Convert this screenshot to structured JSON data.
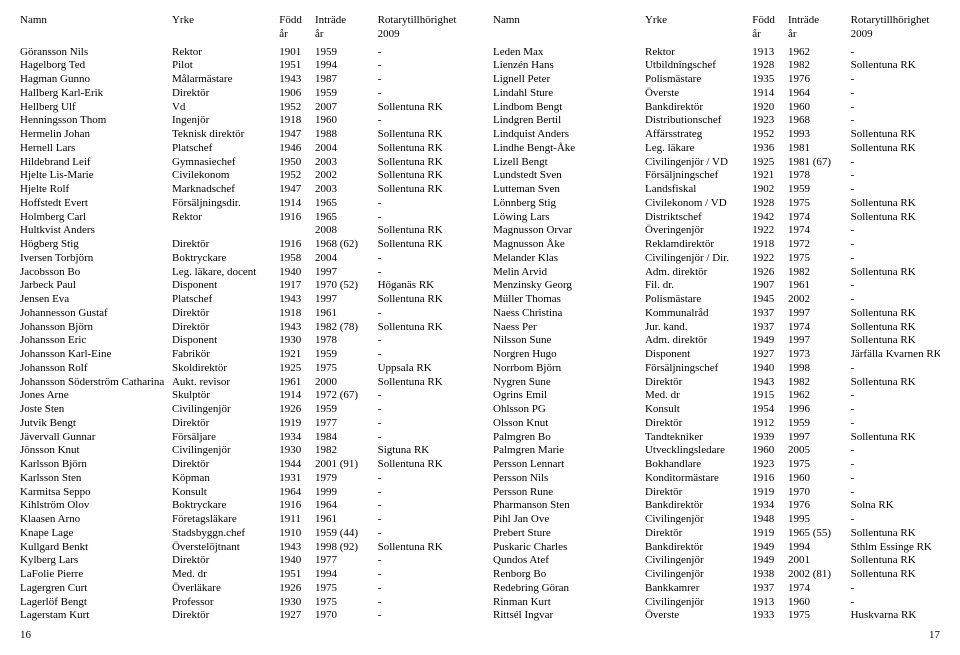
{
  "headers": {
    "name": "Namn",
    "prof": "Yrke",
    "bornTop": "Född",
    "bornBot": "år",
    "joinTop": "Inträde",
    "joinBot": "år",
    "rotTop": "Rotarytillhörighet",
    "rotBot": "2009"
  },
  "pageLeft": "16",
  "pageRight": "17",
  "left": [
    {
      "n": "Göransson Nils",
      "p": "Rektor",
      "b": "1901",
      "j": "1959",
      "r": "-"
    },
    {
      "n": "Hagelborg Ted",
      "p": "Pilot",
      "b": "1951",
      "j": "1994",
      "r": "-"
    },
    {
      "n": "Hagman Gunno",
      "p": "Målarmästare",
      "b": "1943",
      "j": "1987",
      "r": "-"
    },
    {
      "n": "Hallberg Karl-Erik",
      "p": "Direktör",
      "b": "1906",
      "j": "1959",
      "r": "-"
    },
    {
      "n": "Hellberg Ulf",
      "p": "Vd",
      "b": "1952",
      "j": "2007",
      "r": "Sollentuna RK"
    },
    {
      "n": "Henningsson Thom",
      "p": "Ingenjör",
      "b": "1918",
      "j": "1960",
      "r": "-"
    },
    {
      "n": "Hermelin Johan",
      "p": "Teknisk direktör",
      "b": "1947",
      "j": "1988",
      "r": "Sollentuna RK"
    },
    {
      "n": "Hernell Lars",
      "p": "Platschef",
      "b": "1946",
      "j": "2004",
      "r": "Sollentuna RK"
    },
    {
      "n": "Hildebrand Leif",
      "p": "Gymnasiechef",
      "b": "1950",
      "j": "2003",
      "r": "Sollentuna RK"
    },
    {
      "n": "Hjelte Lis-Marie",
      "p": "Civilekonom",
      "b": "1952",
      "j": "2002",
      "r": "Sollentuna RK"
    },
    {
      "n": "Hjelte Rolf",
      "p": "Marknadschef",
      "b": "1947",
      "j": "2003",
      "r": "Sollentuna RK"
    },
    {
      "n": "Hoffstedt Evert",
      "p": "Försäljningsdir.",
      "b": "1914",
      "j": "1965",
      "r": "-"
    },
    {
      "n": "Holmberg Carl",
      "p": "Rektor",
      "b": "1916",
      "j": "1965",
      "r": "-"
    },
    {
      "n": "Hultkvist Anders",
      "p": "",
      "b": "",
      "j": "2008",
      "r": "Sollentuna RK"
    },
    {
      "n": "Högberg Stig",
      "p": "Direktör",
      "b": "1916",
      "j": "1968 (62)",
      "r": "Sollentuna RK"
    },
    {
      "n": "Iversen Torbjörn",
      "p": "Boktryckare",
      "b": "1958",
      "j": "2004",
      "r": "-"
    },
    {
      "n": "Jacobsson Bo",
      "p": "Leg. läkare, docent",
      "b": "1940",
      "j": "1997",
      "r": "-"
    },
    {
      "n": "Jarbeck Paul",
      "p": "Disponent",
      "b": "1917",
      "j": "1970 (52)",
      "r": "Höganäs RK"
    },
    {
      "n": "Jensen Eva",
      "p": "Platschef",
      "b": "1943",
      "j": "1997",
      "r": "Sollentuna RK"
    },
    {
      "n": "Johannesson Gustaf",
      "p": "Direktör",
      "b": "1918",
      "j": "1961",
      "r": "-"
    },
    {
      "n": "Johansson Björn",
      "p": "Direktör",
      "b": "1943",
      "j": "1982 (78)",
      "r": "Sollentuna RK"
    },
    {
      "n": "Johansson Eric",
      "p": "Disponent",
      "b": "1930",
      "j": "1978",
      "r": "-"
    },
    {
      "n": "Johansson Karl-Eine",
      "p": "Fabrikör",
      "b": "1921",
      "j": "1959",
      "r": "-"
    },
    {
      "n": "Johansson Rolf",
      "p": "Skoldirektör",
      "b": "1925",
      "j": "1975",
      "r": "Uppsala RK"
    },
    {
      "n": "Johansson Söderström Catharina",
      "p": "Aukt. revisor",
      "b": "1961",
      "j": "2000",
      "r": "Sollentuna RK"
    },
    {
      "n": "Jones Arne",
      "p": "Skulptör",
      "b": "1914",
      "j": "1972 (67)",
      "r": "-"
    },
    {
      "n": "Joste Sten",
      "p": "Civilingenjör",
      "b": "1926",
      "j": "1959",
      "r": "-"
    },
    {
      "n": "Jutvik Bengt",
      "p": "Direktör",
      "b": "1919",
      "j": "1977",
      "r": "-"
    },
    {
      "n": "Jävervall Gunnar",
      "p": "Försäljare",
      "b": "1934",
      "j": "1984",
      "r": "-"
    },
    {
      "n": "Jönsson Knut",
      "p": "Civilingenjör",
      "b": "1930",
      "j": "1982",
      "r": "Sigtuna RK"
    },
    {
      "n": "Karlsson Björn",
      "p": "Direktör",
      "b": "1944",
      "j": "2001 (91)",
      "r": "Sollentuna RK"
    },
    {
      "n": "Karlsson Sten",
      "p": "Köpman",
      "b": "1931",
      "j": "1979",
      "r": "-"
    },
    {
      "n": "Karmitsa Seppo",
      "p": "Konsult",
      "b": "1964",
      "j": "1999",
      "r": "-"
    },
    {
      "n": "Kihlström Olov",
      "p": "Boktryckare",
      "b": "1916",
      "j": "1964",
      "r": "-"
    },
    {
      "n": "Klaasen Arno",
      "p": "Företagsläkare",
      "b": "1911",
      "j": "1961",
      "r": "-"
    },
    {
      "n": "Knape Lage",
      "p": "Stadsbyggn.chef",
      "b": "1910",
      "j": "1959 (44)",
      "r": "-"
    },
    {
      "n": "Kullgard Benkt",
      "p": "Överstelöjtnant",
      "b": "1943",
      "j": "1998 (92)",
      "r": "Sollentuna RK"
    },
    {
      "n": "Kylberg Lars",
      "p": "Direktör",
      "b": "1940",
      "j": "1977",
      "r": "-"
    },
    {
      "n": "LaFolie Pierre",
      "p": "Med. dr",
      "b": "1951",
      "j": "1994",
      "r": "-"
    },
    {
      "n": "Lagergren Curt",
      "p": "Överläkare",
      "b": "1926",
      "j": "1975",
      "r": "-"
    },
    {
      "n": "Lagerlöf Bengt",
      "p": "Professor",
      "b": "1930",
      "j": "1975",
      "r": "-"
    },
    {
      "n": "Lagerstam Kurt",
      "p": "Direktör",
      "b": "1927",
      "j": "1970",
      "r": "-"
    }
  ],
  "right": [
    {
      "n": "Leden Max",
      "p": "Rektor",
      "b": "1913",
      "j": "1962",
      "r": "-"
    },
    {
      "n": "Lienzén Hans",
      "p": "Utbildningschef",
      "b": "1928",
      "j": "1982",
      "r": "Sollentuna RK"
    },
    {
      "n": "Lignell Peter",
      "p": "Polismästare",
      "b": "1935",
      "j": "1976",
      "r": "-"
    },
    {
      "n": "Lindahl Sture",
      "p": "Överste",
      "b": "1914",
      "j": "1964",
      "r": "-"
    },
    {
      "n": "Lindbom Bengt",
      "p": "Bankdirektör",
      "b": "1920",
      "j": "1960",
      "r": "-"
    },
    {
      "n": "Lindgren Bertil",
      "p": "Distributionschef",
      "b": "1923",
      "j": "1968",
      "r": "-"
    },
    {
      "n": "Lindquist Anders",
      "p": "Affärsstrateg",
      "b": "1952",
      "j": "1993",
      "r": "Sollentuna RK"
    },
    {
      "n": "Lindhe Bengt-Åke",
      "p": "Leg. läkare",
      "b": "1936",
      "j": "1981",
      "r": "Sollentuna RK"
    },
    {
      "n": "Lizell Bengt",
      "p": "Civilingenjör / VD",
      "b": "1925",
      "j": "1981 (67)",
      "r": "-"
    },
    {
      "n": "Lundstedt Sven",
      "p": "Försäljningschef",
      "b": "1921",
      "j": "1978",
      "r": "-"
    },
    {
      "n": "Lutteman Sven",
      "p": "Landsfiskal",
      "b": "1902",
      "j": "1959",
      "r": "-"
    },
    {
      "n": "Lönnberg Stig",
      "p": "Civilekonom / VD",
      "b": "1928",
      "j": "1975",
      "r": "Sollentuna RK"
    },
    {
      "n": "Löwing Lars",
      "p": "Distriktschef",
      "b": "1942",
      "j": "1974",
      "r": "Sollentuna RK"
    },
    {
      "n": "Magnusson Orvar",
      "p": "Överingenjör",
      "b": "1922",
      "j": "1974",
      "r": "-"
    },
    {
      "n": "Magnusson Åke",
      "p": "Reklamdirektör",
      "b": "1918",
      "j": "1972",
      "r": "-"
    },
    {
      "n": "Melander Klas",
      "p": "Civilingenjör / Dir.",
      "b": "1922",
      "j": "1975",
      "r": "-"
    },
    {
      "n": "Melin Arvid",
      "p": "Adm. direktör",
      "b": "1926",
      "j": "1982",
      "r": "Sollentuna RK"
    },
    {
      "n": "Menzinsky Georg",
      "p": "Fil. dr.",
      "b": "1907",
      "j": "1961",
      "r": "-"
    },
    {
      "n": "Müller Thomas",
      "p": "Polismästare",
      "b": "1945",
      "j": "2002",
      "r": "-"
    },
    {
      "n": "Naess Christina",
      "p": "Kommunalråd",
      "b": "1937",
      "j": "1997",
      "r": "Sollentuna RK"
    },
    {
      "n": "Naess Per",
      "p": "Jur. kand.",
      "b": "1937",
      "j": "1974",
      "r": "Sollentuna RK"
    },
    {
      "n": "Nilsson Sune",
      "p": "Adm. direktör",
      "b": "1949",
      "j": "1997",
      "r": "Sollentuna RK"
    },
    {
      "n": "Norgren Hugo",
      "p": "Disponent",
      "b": "1927",
      "j": "1973",
      "r": "Järfälla Kvarnen RK"
    },
    {
      "n": "Norrbom Björn",
      "p": "Försäljningschef",
      "b": "1940",
      "j": "1998",
      "r": "-"
    },
    {
      "n": "Nygren Sune",
      "p": "Direktör",
      "b": "1943",
      "j": "1982",
      "r": "Sollentuna RK"
    },
    {
      "n": "Ogrins Emil",
      "p": "Med. dr",
      "b": "1915",
      "j": "1962",
      "r": "-"
    },
    {
      "n": "Ohlsson PG",
      "p": "Konsult",
      "b": "1954",
      "j": "1996",
      "r": "-"
    },
    {
      "n": "Olsson Knut",
      "p": "Direktör",
      "b": "1912",
      "j": "1959",
      "r": "-"
    },
    {
      "n": "Palmgren Bo",
      "p": "Tandtekniker",
      "b": "1939",
      "j": "1997",
      "r": "Sollentuna RK"
    },
    {
      "n": "Palmgren Marie",
      "p": "Utvecklingsledare",
      "b": "1960",
      "j": "2005",
      "r": "-"
    },
    {
      "n": "Persson Lennart",
      "p": "Bokhandlare",
      "b": "1923",
      "j": "1975",
      "r": "-"
    },
    {
      "n": "Persson Nils",
      "p": "Konditormästare",
      "b": "1916",
      "j": "1960",
      "r": "-"
    },
    {
      "n": "Persson Rune",
      "p": "Direktör",
      "b": "1919",
      "j": "1970",
      "r": "-"
    },
    {
      "n": "Pharmanson Sten",
      "p": "Bankdirektör",
      "b": "1934",
      "j": "1976",
      "r": "Solna RK"
    },
    {
      "n": "Pihl Jan Ove",
      "p": "Civilingenjör",
      "b": "1948",
      "j": "1995",
      "r": "-"
    },
    {
      "n": "Prebert Sture",
      "p": "Direktör",
      "b": "1919",
      "j": "1965 (55)",
      "r": "Sollentuna RK"
    },
    {
      "n": "Puskaric Charles",
      "p": "Bankdirektör",
      "b": "1949",
      "j": "1994",
      "r": "Sthlm Essinge RK"
    },
    {
      "n": "Qundos Atef",
      "p": "Civilingenjör",
      "b": "1949",
      "j": "2001",
      "r": "Sollentuna RK"
    },
    {
      "n": "Renborg Bo",
      "p": "Civilingenjör",
      "b": "1938",
      "j": "2002 (81)",
      "r": "Sollentuna RK"
    },
    {
      "n": "Redebring Göran",
      "p": "Bankkamrer",
      "b": "1937",
      "j": "1974",
      "r": "-"
    },
    {
      "n": "Rinman Kurt",
      "p": "Civilingenjör",
      "b": "1913",
      "j": "1960",
      "r": "-"
    },
    {
      "n": "Rittsél Ingvar",
      "p": "Överste",
      "b": "1933",
      "j": "1975",
      "r": "Huskvarna RK"
    }
  ]
}
